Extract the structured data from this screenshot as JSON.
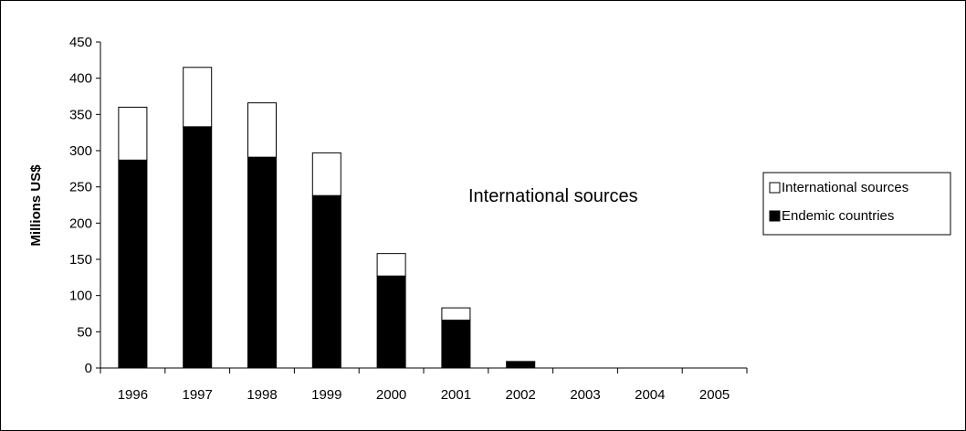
{
  "chart_data": {
    "type": "bar",
    "stacked": true,
    "categories": [
      "1996",
      "1997",
      "1998",
      "1999",
      "2000",
      "2001",
      "2002",
      "2003",
      "2004",
      "2005"
    ],
    "series": [
      {
        "name": "Endemic countries",
        "values": [
          287,
          333,
          291,
          238,
          127,
          66,
          8,
          0,
          0,
          0
        ],
        "color": "#000000"
      },
      {
        "name": "International sources",
        "values": [
          73,
          82,
          75,
          59,
          31,
          17,
          1,
          0,
          0,
          0
        ],
        "color": "#ffffff"
      }
    ],
    "ylabel": "Millions US$",
    "xlabel": "",
    "ylim": [
      0,
      450
    ],
    "yticks": [
      0,
      50,
      100,
      150,
      200,
      250,
      300,
      350,
      400,
      450
    ],
    "annotation": "International sources",
    "legend_position": "right",
    "grid": false
  }
}
